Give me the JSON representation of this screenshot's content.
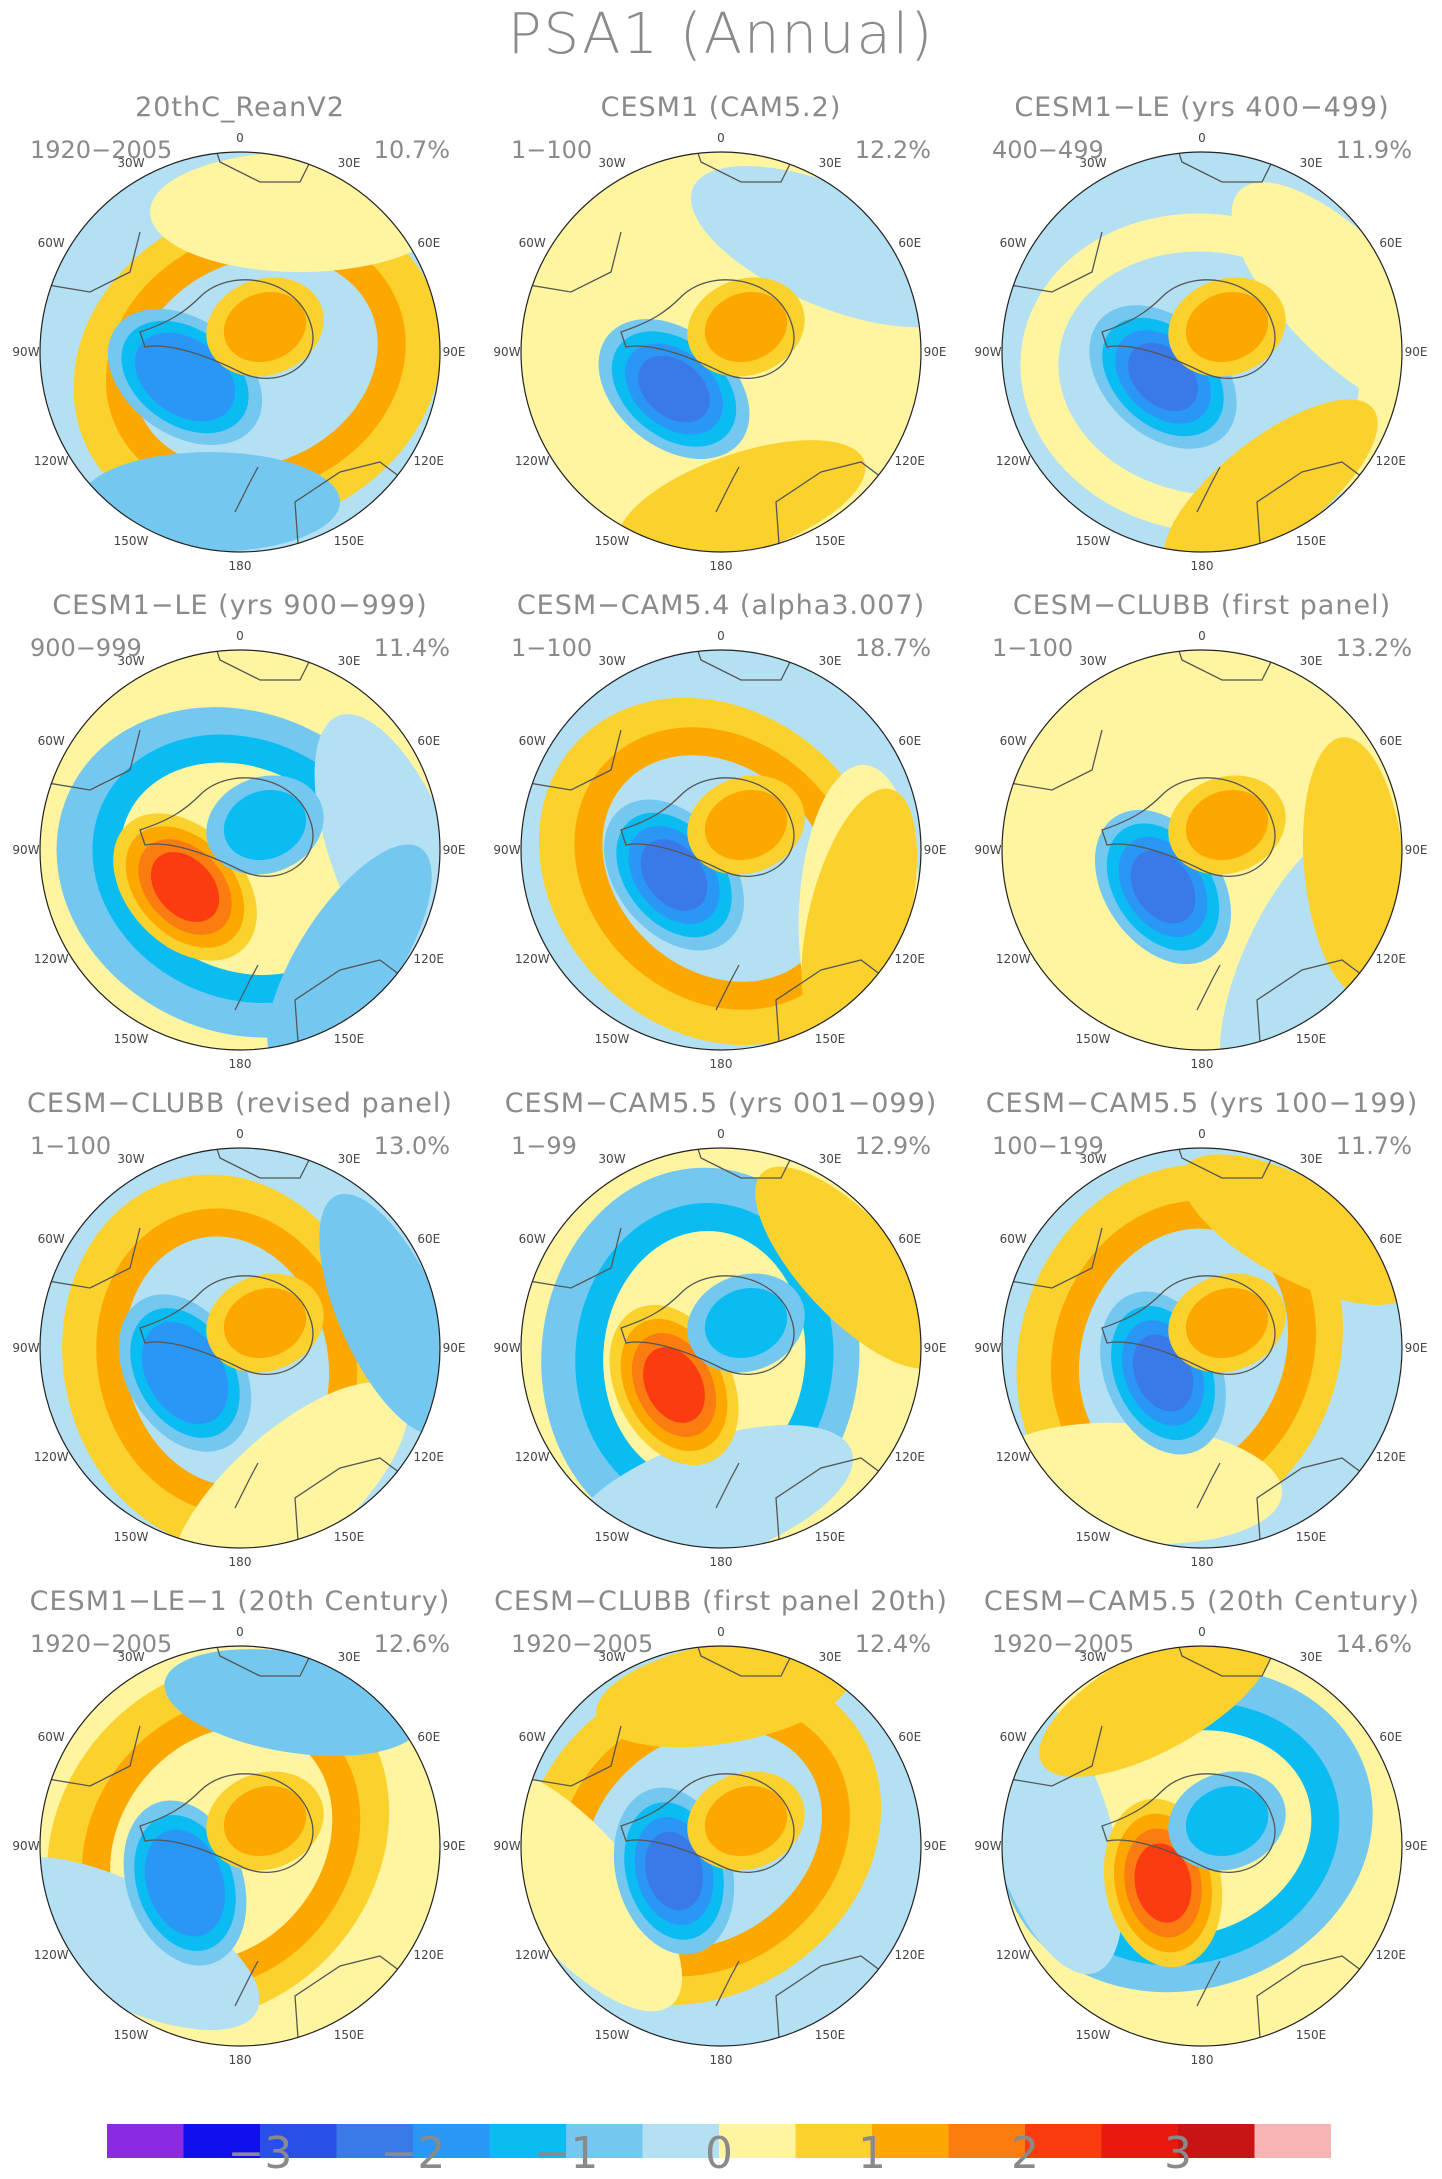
{
  "title": "PSA1 (Annual)",
  "lon_labels": [
    "0",
    "30E",
    "60E",
    "90E",
    "120E",
    "150E",
    "180",
    "150W",
    "120W",
    "90W",
    "60W",
    "30W"
  ],
  "colorbar": {
    "colors": [
      "#8a2be2",
      "#1010ee",
      "#2a4ee8",
      "#3a7ae8",
      "#2a96f6",
      "#0bbcf2",
      "#74c8f0",
      "#b4e0f4",
      "#fff5a0",
      "#fbd12e",
      "#fca800",
      "#fb7c10",
      "#fb3c10",
      "#e81a10",
      "#c81414",
      "#f8b4b4"
    ],
    "labels": [
      "−3",
      "−2",
      "−1",
      "0",
      "1",
      "2",
      "3"
    ]
  },
  "panels": [
    {
      "title": "20thC_ReanV2",
      "period": "1920−2005",
      "percent": "10.7%",
      "center": "blue",
      "strength": 2,
      "ring": "orange"
    },
    {
      "title": "CESM1 (CAM5.2)",
      "period": "1−100",
      "percent": "12.2%",
      "center": "blue",
      "strength": 3,
      "ring": "yellow"
    },
    {
      "title": "CESM1−LE (yrs 400−499)",
      "period": "400−499",
      "percent": "11.9%",
      "center": "blue",
      "strength": 3,
      "ring": "yellow"
    },
    {
      "title": "CESM1−LE (yrs 900−999)",
      "period": "900−999",
      "percent": "11.4%",
      "center": "orange",
      "strength": 3,
      "ring": "blue"
    },
    {
      "title": "CESM−CAM5.4 (alpha3.007)",
      "period": "1−100",
      "percent": "18.7%",
      "center": "blue",
      "strength": 4,
      "ring": "orange"
    },
    {
      "title": "CESM−CLUBB (first panel)",
      "period": "1−100",
      "percent": "13.2%",
      "center": "blue",
      "strength": 4,
      "ring": "yellow"
    },
    {
      "title": "CESM−CLUBB (revised panel)",
      "period": "1−100",
      "percent": "13.0%",
      "center": "blue",
      "strength": 2,
      "ring": "orange"
    },
    {
      "title": "CESM−CAM5.5 (yrs 001−099)",
      "period": "1−99",
      "percent": "12.9%",
      "center": "orange",
      "strength": 3,
      "ring": "blue"
    },
    {
      "title": "CESM−CAM5.5 (yrs 100−199)",
      "period": "100−199",
      "percent": "11.7%",
      "center": "blue",
      "strength": 3,
      "ring": "orange"
    },
    {
      "title": "CESM1−LE−1 (20th Century)",
      "period": "1920−2005",
      "percent": "12.6%",
      "center": "blue",
      "strength": 2,
      "ring": "orange"
    },
    {
      "title": "CESM−CLUBB (first panel 20th)",
      "period": "1920−2005",
      "percent": "12.4%",
      "center": "blue",
      "strength": 3,
      "ring": "orange"
    },
    {
      "title": "CESM−CAM5.5 (20th Century)",
      "period": "1920−2005",
      "percent": "14.6%",
      "center": "orange",
      "strength": 4,
      "ring": "blue"
    }
  ]
}
